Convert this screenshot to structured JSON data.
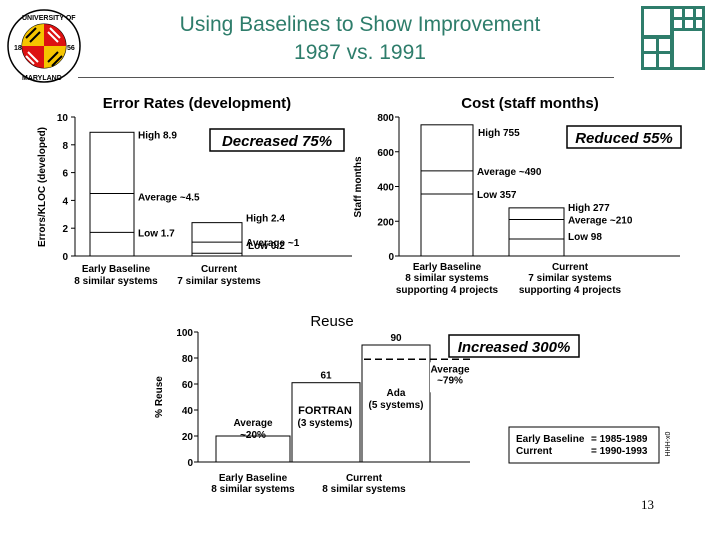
{
  "slide": {
    "title_line1": "Using Baselines to Show Improvement",
    "title_line2": "1987 vs. 1991",
    "page_number": "13",
    "logo_text_top": "UNIVERSITY OF",
    "logo_text_bottom": "MARYLAND",
    "logo_year_left": "18",
    "logo_year_right": "56",
    "side_code": "HHH-x0"
  },
  "chart_data": [
    {
      "type": "bar",
      "title": "Error Rates (development)",
      "ylabel": "Errors/KLOC (developed)",
      "ylim": [
        0,
        10
      ],
      "yticks": [
        "0",
        "2",
        "4",
        "6",
        "8",
        "10"
      ],
      "ytick_values": [
        0,
        2,
        4,
        6,
        8,
        10
      ],
      "categories": [
        "Early Baseline",
        "Current"
      ],
      "category_sub": [
        "8 similar systems",
        "7 similar systems"
      ],
      "high": [
        8.9,
        2.4
      ],
      "average": [
        4.5,
        1
      ],
      "low": [
        1.7,
        0.2
      ],
      "labels": [
        {
          "high": "High  8.9",
          "average": "Average  ~4.5",
          "low": "Low  1.7"
        },
        {
          "high": "High  2.4",
          "average": "Average  ~1",
          "low": "Low  0.2"
        }
      ],
      "annotation": "Decreased 75%"
    },
    {
      "type": "bar",
      "title": "Cost (staff months)",
      "ylabel": "Staff months",
      "ylim": [
        0,
        800
      ],
      "yticks": [
        "0",
        "200",
        "400",
        "600",
        "800"
      ],
      "ytick_values": [
        0,
        200,
        400,
        600,
        800
      ],
      "categories": [
        "Early Baseline",
        "Current"
      ],
      "category_sub": [
        "8 similar systems",
        "7 similar systems"
      ],
      "category_sub2": [
        "supporting 4 projects",
        "supporting 4 projects"
      ],
      "high": [
        755,
        277
      ],
      "average": [
        490,
        210
      ],
      "low": [
        357,
        98
      ],
      "labels": [
        {
          "high": "High  755",
          "average": "Average  ~490",
          "low": "Low  357"
        },
        {
          "high": "High  277",
          "average": "Average  ~210",
          "low": "Low  98"
        }
      ],
      "annotation": "Reduced 55%"
    },
    {
      "type": "bar",
      "title": "Reuse",
      "ylabel": "% Reuse",
      "ylim": [
        0,
        100
      ],
      "yticks": [
        "0",
        "20",
        "40",
        "60",
        "80",
        "100"
      ],
      "ytick_values": [
        0,
        20,
        40,
        60,
        80,
        100
      ],
      "categories": [
        "Early Baseline",
        "Current"
      ],
      "category_sub": [
        "8 similar systems",
        "8 similar systems"
      ],
      "average": [
        20,
        79
      ],
      "average_labels": [
        "Average\n~20%",
        "Average\n~79%"
      ],
      "current_bars": [
        {
          "name": "FORTRAN",
          "sub": "(3 systems)",
          "value": 61,
          "value_label": "61"
        },
        {
          "name": "Ada",
          "sub": "(5 systems)",
          "value": 90,
          "value_label": "90"
        }
      ],
      "annotation": "Increased 300%",
      "legend": [
        {
          "label": "Early Baseline",
          "value": "= 1985-1989"
        },
        {
          "label": "Current",
          "value": "= 1990-1993"
        }
      ]
    }
  ]
}
